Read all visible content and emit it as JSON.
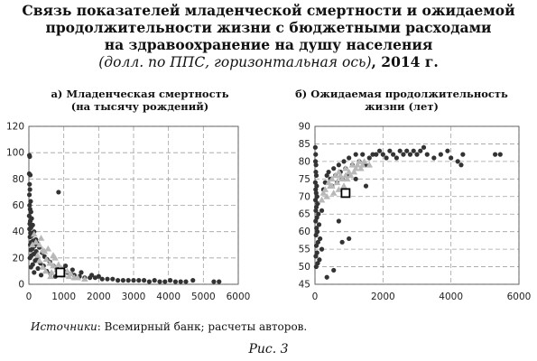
{
  "title": {
    "line1": "Связь показателей младенческой смертности и ожидаемой",
    "line2": "продолжительности жизни с бюджетными расходами",
    "line3": "на здравоохранение на душу населения",
    "line4_italic": "(долл. по ППС, горизонтальная ось)",
    "line4_year": ", 2014 г."
  },
  "source": {
    "label": "Источники",
    "text": ": Всемирный банк; расчеты авторов."
  },
  "figure_caption": "Рис. 3",
  "colors": {
    "dark_points": "#333333",
    "light_points": "#b8b8b8",
    "highlight_box": "#000000",
    "grid": "#a0a0a0"
  },
  "chart_data": [
    {
      "type": "scatter",
      "title_line1": "а) Младенческая смертность",
      "title_line2": "(на тысячу рождений)",
      "xlim": [
        0,
        6000
      ],
      "ylim": [
        0,
        120
      ],
      "xticks": [
        0,
        1000,
        2000,
        3000,
        4000,
        5000,
        6000
      ],
      "yticks": [
        0,
        20,
        40,
        60,
        80,
        100,
        120
      ],
      "grid": true,
      "series": [
        {
          "marker": "circle-dark",
          "points": [
            [
              15,
              98
            ],
            [
              25,
              97
            ],
            [
              10,
              84
            ],
            [
              40,
              83
            ],
            [
              20,
              76
            ],
            [
              30,
              72
            ],
            [
              15,
              68
            ],
            [
              50,
              63
            ],
            [
              20,
              60
            ],
            [
              35,
              57
            ],
            [
              60,
              55
            ],
            [
              10,
              52
            ],
            [
              80,
              50
            ],
            [
              40,
              48
            ],
            [
              25,
              46
            ],
            [
              110,
              45
            ],
            [
              60,
              43
            ],
            [
              20,
              42
            ],
            [
              150,
              40
            ],
            [
              45,
              39
            ],
            [
              90,
              37
            ],
            [
              30,
              36
            ],
            [
              200,
              34
            ],
            [
              120,
              33
            ],
            [
              70,
              32
            ],
            [
              260,
              31
            ],
            [
              40,
              30
            ],
            [
              160,
              29
            ],
            [
              300,
              28
            ],
            [
              100,
              27
            ],
            [
              55,
              26
            ],
            [
              210,
              25
            ],
            [
              380,
              24
            ],
            [
              140,
              23
            ],
            [
              80,
              22
            ],
            [
              450,
              21
            ],
            [
              250,
              20
            ],
            [
              30,
              20
            ],
            [
              520,
              19
            ],
            [
              180,
              18
            ],
            [
              600,
              17
            ],
            [
              330,
              16
            ],
            [
              110,
              15
            ],
            [
              700,
              14
            ],
            [
              420,
              14
            ],
            [
              60,
              13
            ],
            [
              800,
              12
            ],
            [
              260,
              12
            ],
            [
              900,
              11
            ],
            [
              510,
              10
            ],
            [
              1000,
              10
            ],
            [
              150,
              9
            ],
            [
              1100,
              9
            ],
            [
              620,
              8
            ],
            [
              1200,
              8
            ],
            [
              350,
              7
            ],
            [
              1300,
              7
            ],
            [
              760,
              6
            ],
            [
              1450,
              6
            ],
            [
              850,
              70
            ],
            [
              1600,
              5
            ],
            [
              1750,
              5
            ],
            [
              1900,
              5
            ],
            [
              2100,
              4
            ],
            [
              2250,
              4
            ],
            [
              2400,
              4
            ],
            [
              2550,
              3
            ],
            [
              2700,
              3
            ],
            [
              2850,
              3
            ],
            [
              3000,
              3
            ],
            [
              3150,
              3
            ],
            [
              3300,
              3
            ],
            [
              3450,
              2
            ],
            [
              3600,
              3
            ],
            [
              3750,
              2
            ],
            [
              3900,
              2
            ],
            [
              4050,
              3
            ],
            [
              4200,
              2
            ],
            [
              4350,
              2
            ],
            [
              4500,
              2
            ],
            [
              4700,
              3
            ],
            [
              5300,
              2
            ],
            [
              5450,
              2
            ],
            [
              1050,
              14
            ],
            [
              1250,
              11
            ],
            [
              1500,
              9
            ],
            [
              1800,
              7
            ],
            [
              2000,
              6
            ]
          ]
        },
        {
          "marker": "triangle-light",
          "points": [
            [
              150,
              38
            ],
            [
              300,
              30
            ],
            [
              450,
              25
            ],
            [
              250,
              22
            ],
            [
              500,
              19
            ],
            [
              600,
              16
            ],
            [
              700,
              14
            ],
            [
              400,
              13
            ],
            [
              800,
              11
            ],
            [
              650,
              9
            ],
            [
              900,
              8
            ],
            [
              1000,
              7
            ],
            [
              1150,
              6
            ],
            [
              1300,
              5
            ],
            [
              750,
              20
            ],
            [
              550,
              27
            ],
            [
              350,
              35
            ],
            [
              200,
              32
            ],
            [
              950,
              12
            ],
            [
              1100,
              10
            ],
            [
              1400,
              5
            ],
            [
              1600,
              4
            ],
            [
              1200,
              8
            ],
            [
              850,
              15
            ],
            [
              300,
              18
            ],
            [
              100,
              30
            ],
            [
              480,
              10
            ],
            [
              620,
              6
            ],
            [
              400,
              26
            ],
            [
              700,
              22
            ]
          ]
        },
        {
          "marker": "square-highlight",
          "points": [
            [
              900,
              9
            ]
          ]
        }
      ]
    },
    {
      "type": "scatter",
      "title_line1": "б) Ожидаемая продолжительность",
      "title_line2": "жизни (лет)",
      "xlim": [
        0,
        6000
      ],
      "ylim": [
        45,
        90
      ],
      "xticks": [
        0,
        2000,
        4000,
        6000
      ],
      "yticks": [
        45,
        50,
        55,
        60,
        65,
        70,
        75,
        80,
        85,
        90
      ],
      "grid": true,
      "series": [
        {
          "marker": "circle-dark",
          "points": [
            [
              10,
              84
            ],
            [
              20,
              82
            ],
            [
              15,
              80
            ],
            [
              30,
              79
            ],
            [
              25,
              77
            ],
            [
              40,
              76
            ],
            [
              10,
              74
            ],
            [
              50,
              73
            ],
            [
              20,
              72
            ],
            [
              35,
              71
            ],
            [
              60,
              70
            ],
            [
              15,
              69
            ],
            [
              80,
              68
            ],
            [
              40,
              67
            ],
            [
              25,
              66
            ],
            [
              100,
              65
            ],
            [
              55,
              64
            ],
            [
              20,
              63
            ],
            [
              120,
              62
            ],
            [
              45,
              61
            ],
            [
              70,
              60
            ],
            [
              30,
              59
            ],
            [
              150,
              58
            ],
            [
              90,
              57
            ],
            [
              40,
              56
            ],
            [
              200,
              55
            ],
            [
              60,
              54
            ],
            [
              25,
              53
            ],
            [
              130,
              52
            ],
            [
              80,
              51
            ],
            [
              35,
              50
            ],
            [
              250,
              72
            ],
            [
              300,
              74
            ],
            [
              350,
              76
            ],
            [
              400,
              77
            ],
            [
              450,
              75
            ],
            [
              500,
              73
            ],
            [
              550,
              78
            ],
            [
              600,
              76
            ],
            [
              650,
              74
            ],
            [
              700,
              79
            ],
            [
              750,
              77
            ],
            [
              800,
              75
            ],
            [
              850,
              80
            ],
            [
              900,
              78
            ],
            [
              950,
              76
            ],
            [
              1000,
              81
            ],
            [
              1100,
              79
            ],
            [
              1200,
              82
            ],
            [
              1300,
              80
            ],
            [
              1400,
              82
            ],
            [
              1500,
              79
            ],
            [
              1600,
              81
            ],
            [
              1700,
              82
            ],
            [
              1800,
              82
            ],
            [
              1900,
              83
            ],
            [
              2000,
              82
            ],
            [
              2100,
              81
            ],
            [
              2200,
              83
            ],
            [
              2300,
              82
            ],
            [
              2400,
              81
            ],
            [
              2500,
              83
            ],
            [
              2600,
              82
            ],
            [
              2700,
              83
            ],
            [
              2800,
              82
            ],
            [
              2900,
              83
            ],
            [
              3000,
              82
            ],
            [
              3100,
              83
            ],
            [
              3200,
              84
            ],
            [
              3300,
              82
            ],
            [
              3500,
              81
            ],
            [
              3700,
              82
            ],
            [
              3900,
              83
            ],
            [
              4000,
              81
            ],
            [
              4200,
              80
            ],
            [
              4300,
              79
            ],
            [
              4350,
              82
            ],
            [
              5300,
              82
            ],
            [
              5450,
              82
            ],
            [
              800,
              57
            ],
            [
              550,
              49
            ],
            [
              1000,
              58
            ],
            [
              350,
              47
            ],
            [
              700,
              63
            ],
            [
              200,
              66
            ],
            [
              1500,
              73
            ],
            [
              1200,
              75
            ]
          ]
        },
        {
          "marker": "triangle-light",
          "points": [
            [
              300,
              72
            ],
            [
              400,
              74
            ],
            [
              500,
              75
            ],
            [
              600,
              76
            ],
            [
              700,
              77
            ],
            [
              800,
              75
            ],
            [
              900,
              78
            ],
            [
              1000,
              77
            ],
            [
              1100,
              79
            ],
            [
              1200,
              78
            ],
            [
              1300,
              80
            ],
            [
              1400,
              79
            ],
            [
              350,
              70
            ],
            [
              450,
              73
            ],
            [
              550,
              71
            ],
            [
              650,
              74
            ],
            [
              750,
              76
            ],
            [
              850,
              73
            ],
            [
              950,
              75
            ],
            [
              1050,
              76
            ],
            [
              1150,
              77
            ],
            [
              1250,
              79
            ],
            [
              1350,
              78
            ],
            [
              1450,
              80
            ],
            [
              1600,
              79
            ],
            [
              200,
              69
            ],
            [
              250,
              71
            ],
            [
              500,
              73
            ],
            [
              700,
              72
            ],
            [
              900,
              76
            ]
          ]
        },
        {
          "marker": "square-highlight",
          "points": [
            [
              900,
              71
            ]
          ]
        }
      ]
    }
  ]
}
